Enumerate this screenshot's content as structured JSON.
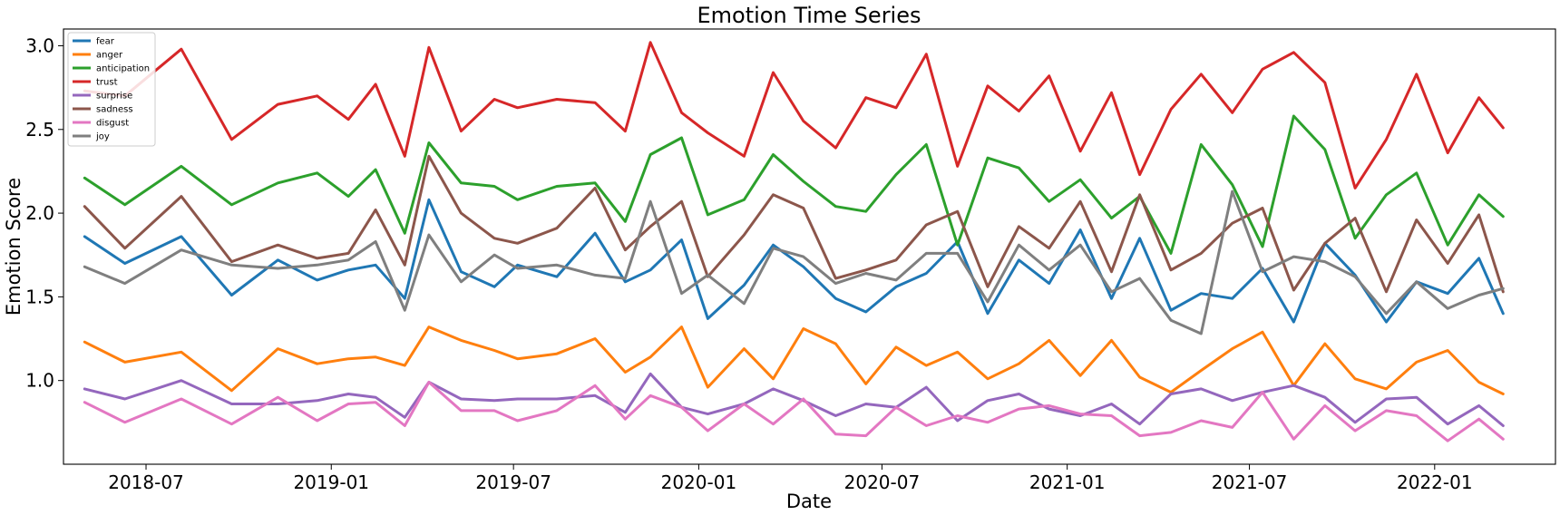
{
  "chart_data": {
    "type": "line",
    "title": "Emotion Time Series",
    "xlabel": "Date",
    "ylabel": "Emotion Score",
    "ylim": [
      0.5,
      3.1
    ],
    "xlim": [
      "2018-04-10",
      "2022-05-01"
    ],
    "grid": false,
    "legend_placement": "top-left",
    "x_ticks": [
      "2018-07",
      "2019-01",
      "2019-07",
      "2020-01",
      "2020-07",
      "2021-01",
      "2021-07",
      "2022-01"
    ],
    "y_ticks": [
      "1.0",
      "1.5",
      "2.0",
      "2.5",
      "3.0"
    ],
    "x": [
      "2018-05-01",
      "2018-06-10",
      "2018-08-05",
      "2018-09-24",
      "2018-11-09",
      "2018-12-18",
      "2019-01-18",
      "2019-02-14",
      "2019-03-15",
      "2019-04-08",
      "2019-05-10",
      "2019-06-12",
      "2019-07-05",
      "2019-08-13",
      "2019-09-20",
      "2019-10-20",
      "2019-11-14",
      "2019-12-15",
      "2020-01-10",
      "2020-02-15",
      "2020-03-15",
      "2020-04-14",
      "2020-05-16",
      "2020-06-15",
      "2020-07-15",
      "2020-08-14",
      "2020-09-14",
      "2020-10-14",
      "2020-11-14",
      "2020-12-14",
      "2021-01-14",
      "2021-02-14",
      "2021-03-14",
      "2021-04-14",
      "2021-05-14",
      "2021-06-14",
      "2021-07-14",
      "2021-08-14",
      "2021-09-14",
      "2021-10-14",
      "2021-11-14",
      "2021-12-14",
      "2022-01-14",
      "2022-02-14",
      "2022-03-10"
    ],
    "series": [
      {
        "name": "fear",
        "color": "#1f77b4",
        "values": [
          1.86,
          1.7,
          1.86,
          1.51,
          1.72,
          1.6,
          1.66,
          1.69,
          1.49,
          2.08,
          1.65,
          1.56,
          1.69,
          1.62,
          1.88,
          1.59,
          1.66,
          1.84,
          1.37,
          1.57,
          1.81,
          1.68,
          1.49,
          1.41,
          1.56,
          1.64,
          1.83,
          1.4,
          1.72,
          1.58,
          1.9,
          1.49,
          1.85,
          1.42,
          1.52,
          1.49,
          1.67,
          1.35,
          1.82,
          1.63,
          1.35,
          1.59,
          1.52,
          1.73,
          1.4
        ]
      },
      {
        "name": "anger",
        "color": "#ff7f0e",
        "values": [
          1.23,
          1.11,
          1.17,
          0.94,
          1.19,
          1.1,
          1.13,
          1.14,
          1.09,
          1.32,
          1.24,
          1.18,
          1.13,
          1.16,
          1.25,
          1.05,
          1.14,
          1.32,
          0.96,
          1.19,
          1.01,
          1.31,
          1.22,
          0.98,
          1.2,
          1.09,
          1.17,
          1.01,
          1.1,
          1.24,
          1.03,
          1.24,
          1.02,
          0.93,
          1.06,
          1.19,
          1.29,
          0.97,
          1.22,
          1.01,
          0.95,
          1.11,
          1.18,
          0.99,
          0.92
        ]
      },
      {
        "name": "anticipation",
        "color": "#2ca02c",
        "values": [
          2.21,
          2.05,
          2.28,
          2.05,
          2.18,
          2.24,
          2.1,
          2.26,
          1.88,
          2.42,
          2.18,
          2.16,
          2.08,
          2.16,
          2.18,
          1.95,
          2.35,
          2.45,
          1.99,
          2.08,
          2.35,
          2.19,
          2.04,
          2.01,
          2.23,
          2.41,
          1.81,
          2.33,
          2.27,
          2.07,
          2.2,
          1.97,
          2.1,
          1.76,
          2.41,
          2.17,
          1.8,
          2.58,
          2.38,
          1.85,
          2.11,
          2.24,
          1.81,
          2.11,
          1.98
        ]
      },
      {
        "name": "trust",
        "color": "#d62728",
        "values": [
          2.73,
          2.7,
          2.98,
          2.44,
          2.65,
          2.7,
          2.56,
          2.77,
          2.34,
          2.99,
          2.49,
          2.68,
          2.63,
          2.68,
          2.66,
          2.49,
          3.02,
          2.6,
          2.48,
          2.34,
          2.84,
          2.55,
          2.39,
          2.69,
          2.63,
          2.95,
          2.28,
          2.76,
          2.61,
          2.82,
          2.37,
          2.72,
          2.23,
          2.62,
          2.83,
          2.6,
          2.86,
          2.96,
          2.78,
          2.15,
          2.44,
          2.83,
          2.36,
          2.69,
          2.51
        ]
      },
      {
        "name": "surprise",
        "color": "#9467bd",
        "values": [
          0.95,
          0.89,
          1.0,
          0.86,
          0.86,
          0.88,
          0.92,
          0.9,
          0.78,
          0.99,
          0.89,
          0.88,
          0.89,
          0.89,
          0.91,
          0.81,
          1.04,
          0.84,
          0.8,
          0.86,
          0.95,
          0.88,
          0.79,
          0.86,
          0.84,
          0.96,
          0.76,
          0.88,
          0.92,
          0.83,
          0.79,
          0.86,
          0.74,
          0.92,
          0.95,
          0.88,
          0.93,
          0.97,
          0.9,
          0.75,
          0.89,
          0.9,
          0.74,
          0.85,
          0.73
        ]
      },
      {
        "name": "sadness",
        "color": "#8c564b",
        "values": [
          2.04,
          1.79,
          2.1,
          1.71,
          1.81,
          1.73,
          1.76,
          2.02,
          1.69,
          2.34,
          2.0,
          1.85,
          1.82,
          1.91,
          2.15,
          1.78,
          1.92,
          2.07,
          1.62,
          1.87,
          2.11,
          2.03,
          1.61,
          1.66,
          1.72,
          1.93,
          2.01,
          1.56,
          1.92,
          1.79,
          2.07,
          1.65,
          2.11,
          1.66,
          1.76,
          1.94,
          2.03,
          1.54,
          1.82,
          1.97,
          1.53,
          1.96,
          1.7,
          1.99,
          1.53
        ]
      },
      {
        "name": "disgust",
        "color": "#e377c2",
        "values": [
          0.87,
          0.75,
          0.89,
          0.74,
          0.9,
          0.76,
          0.86,
          0.87,
          0.73,
          0.99,
          0.82,
          0.82,
          0.76,
          0.82,
          0.97,
          0.77,
          0.91,
          0.84,
          0.7,
          0.86,
          0.74,
          0.89,
          0.68,
          0.67,
          0.84,
          0.73,
          0.79,
          0.75,
          0.83,
          0.85,
          0.8,
          0.79,
          0.67,
          0.69,
          0.76,
          0.72,
          0.93,
          0.65,
          0.85,
          0.7,
          0.82,
          0.79,
          0.64,
          0.77,
          0.65
        ]
      },
      {
        "name": "joy",
        "color": "#7f7f7f",
        "values": [
          1.68,
          1.58,
          1.78,
          1.69,
          1.67,
          1.69,
          1.72,
          1.83,
          1.42,
          1.87,
          1.59,
          1.75,
          1.67,
          1.69,
          1.63,
          1.61,
          2.07,
          1.52,
          1.63,
          1.46,
          1.79,
          1.74,
          1.58,
          1.64,
          1.6,
          1.76,
          1.76,
          1.47,
          1.81,
          1.66,
          1.81,
          1.53,
          1.61,
          1.36,
          1.28,
          2.13,
          1.65,
          1.74,
          1.71,
          1.62,
          1.4,
          1.59,
          1.43,
          1.51,
          1.55
        ]
      }
    ]
  }
}
